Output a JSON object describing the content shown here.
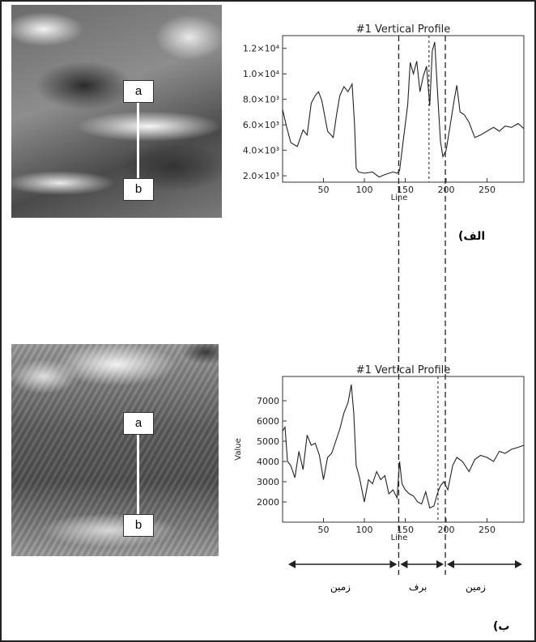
{
  "images": {
    "top": {
      "label_top": "a",
      "label_bottom": "b"
    },
    "bottom": {
      "label_top": "a",
      "label_bottom": "b"
    }
  },
  "chart_data": [
    {
      "type": "line",
      "title": "#1 Vertical Profile",
      "xlabel": "Line",
      "ylabel": "",
      "panel_label": "الف)",
      "xlim": [
        0,
        295
      ],
      "ylim": [
        1500,
        13000
      ],
      "xticks": [
        50,
        100,
        150,
        200,
        250
      ],
      "ytick_labels": [
        "2.0×10³",
        "4.0×10³",
        "6.0×10³",
        "8.0×10³",
        "1.0×10⁴",
        "1.2×10⁴"
      ],
      "ytick_values": [
        2000,
        4000,
        6000,
        8000,
        10000,
        12000
      ],
      "x": [
        0,
        5,
        10,
        18,
        25,
        30,
        35,
        40,
        44,
        48,
        55,
        62,
        66,
        70,
        75,
        80,
        85,
        88,
        90,
        93,
        100,
        110,
        118,
        125,
        135,
        140,
        143,
        148,
        153,
        156,
        160,
        164,
        168,
        172,
        176,
        180,
        183,
        186,
        190,
        193,
        196,
        200,
        205,
        210,
        213,
        217,
        222,
        228,
        235,
        242,
        250,
        258,
        265,
        272,
        280,
        288,
        295
      ],
      "y": [
        7200,
        5800,
        4600,
        4300,
        5600,
        5200,
        7700,
        8300,
        8600,
        7900,
        5500,
        5000,
        6800,
        8300,
        9000,
        8600,
        9200,
        6000,
        2600,
        2300,
        2200,
        2300,
        1900,
        2100,
        2300,
        2200,
        2400,
        5000,
        7600,
        10900,
        10000,
        11000,
        8600,
        9800,
        10600,
        7500,
        11800,
        12500,
        8000,
        4700,
        3500,
        4000,
        6000,
        8000,
        9100,
        7000,
        6800,
        6200,
        5000,
        5200,
        5500,
        5800,
        5500,
        5900,
        5800,
        6100,
        5700
      ],
      "dashed_lines_x": [
        142,
        199
      ]
    },
    {
      "type": "line",
      "title": "#1 Vertical Profile",
      "xlabel": "Line",
      "ylabel": "Value",
      "panel_label": "ب)",
      "xlim": [
        0,
        295
      ],
      "ylim": [
        1000,
        8200
      ],
      "xticks": [
        50,
        100,
        150,
        200,
        250
      ],
      "yticks": [
        2000,
        3000,
        4000,
        5000,
        6000,
        7000
      ],
      "x": [
        0,
        3,
        6,
        10,
        15,
        20,
        25,
        30,
        35,
        40,
        45,
        50,
        55,
        60,
        65,
        70,
        75,
        80,
        84,
        87,
        90,
        94,
        100,
        105,
        110,
        115,
        120,
        125,
        130,
        135,
        140,
        143,
        146,
        150,
        155,
        160,
        165,
        170,
        175,
        180,
        185,
        190,
        193,
        197,
        202,
        208,
        213,
        220,
        228,
        235,
        242,
        250,
        258,
        265,
        272,
        280,
        288,
        295
      ],
      "y": [
        5500,
        5700,
        4000,
        3800,
        3200,
        4500,
        3600,
        5300,
        4800,
        4900,
        4300,
        3100,
        4200,
        4400,
        5000,
        5600,
        6400,
        6900,
        7800,
        6400,
        3800,
        3200,
        2000,
        3100,
        2900,
        3500,
        3100,
        3300,
        2400,
        2600,
        2200,
        4000,
        2900,
        2600,
        2400,
        2300,
        2000,
        1900,
        2500,
        1700,
        1800,
        2500,
        2800,
        3000,
        2600,
        3800,
        4200,
        4000,
        3500,
        4100,
        4300,
        4200,
        4000,
        4500,
        4400,
        4600,
        4700,
        4800
      ],
      "dashed_lines_x": [
        142,
        190,
        199
      ]
    }
  ],
  "annotations": {
    "regions": [
      {
        "label": "زمین"
      },
      {
        "label": "برف"
      },
      {
        "label": "زمین"
      }
    ]
  }
}
